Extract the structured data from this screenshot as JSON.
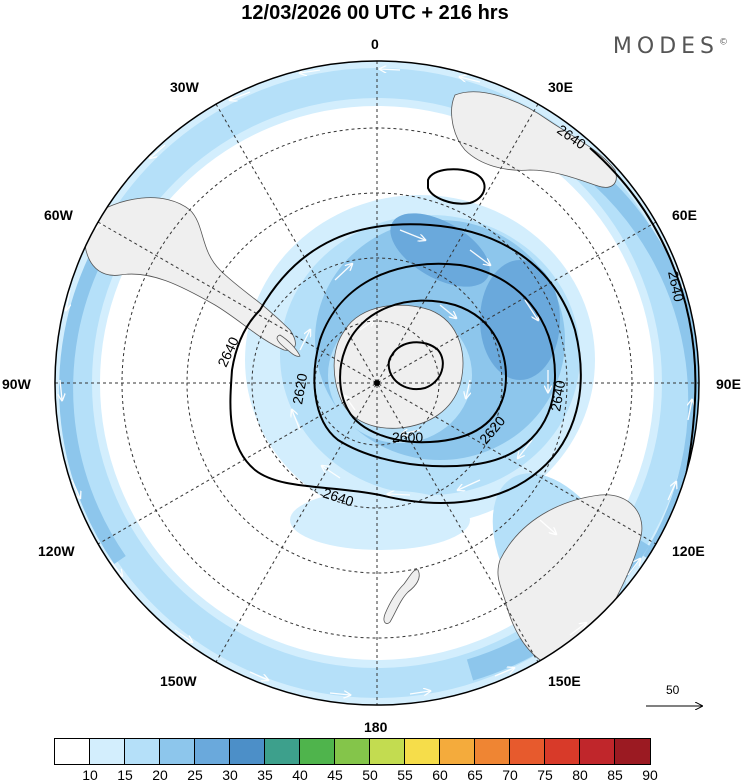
{
  "title": "12/03/2026  00 UTC  + 216 hrs",
  "brand": "MODES",
  "brand_mark": "©",
  "longitude_labels": {
    "top": "0",
    "lon_30e": "30E",
    "lon_60e": "60E",
    "lon_90e": "90E",
    "lon_120e": "120E",
    "lon_150e": "150E",
    "bottom": "180",
    "lon_150w": "150W",
    "lon_120w": "120W",
    "lon_90w": "90W",
    "lon_60w": "60W",
    "lon_30w": "30W"
  },
  "contour_labels": {
    "c2640_ne": "2640",
    "c2640_e": "2640",
    "c2640_w": "2640",
    "c2640_s": "2640",
    "c2620_w": "2620",
    "c2620_se": "2620",
    "c2640_inner_e": "2640",
    "c2600": "2600"
  },
  "wind_reference": {
    "value": "50"
  },
  "colorbar": {
    "ticks": [
      "10",
      "15",
      "20",
      "25",
      "30",
      "35",
      "40",
      "45",
      "50",
      "55",
      "60",
      "65",
      "70",
      "75",
      "80",
      "85",
      "90"
    ],
    "colors": [
      "#ffffff",
      "#d3eefd",
      "#b5e0f9",
      "#8dc6ec",
      "#6aa9dc",
      "#4c8fc8",
      "#3da08c",
      "#4fb44c",
      "#84c54a",
      "#c3dc50",
      "#f6dd4a",
      "#f4ab3c",
      "#ef8533",
      "#e75a2d",
      "#d83a29",
      "#c0262b",
      "#9b1a22"
    ]
  },
  "chart_data": {
    "type": "polar-stereographic map",
    "projection_center": "South Pole",
    "variable_shaded": "wind speed",
    "shading_levels": [
      10,
      15,
      20,
      25,
      30,
      35,
      40,
      45,
      50,
      55,
      60,
      65,
      70,
      75,
      80,
      85,
      90
    ],
    "contour_variable": "geopotential height",
    "contour_levels": [
      2600,
      2620,
      2640
    ],
    "vector_reference": 50,
    "valid": "12/03/2026 00 UTC + 216 hrs"
  }
}
